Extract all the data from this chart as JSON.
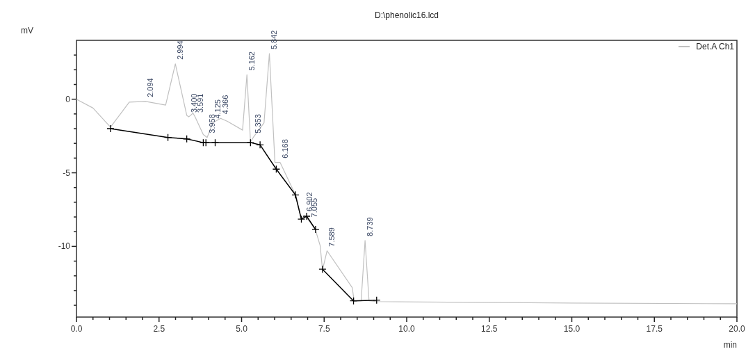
{
  "chart_data": {
    "type": "line",
    "title": "D:\\phenolic16.lcd",
    "xlabel": "min",
    "ylabel": "mV",
    "xlim": [
      0,
      20
    ],
    "ylim": [
      -14.8,
      4.0
    ],
    "xticks": [
      {
        "value": 0,
        "label": "0.0"
      },
      {
        "value": 0.5,
        "label": null
      },
      {
        "value": 1,
        "label": null
      },
      {
        "value": 1.5,
        "label": null
      },
      {
        "value": 2,
        "label": null
      },
      {
        "value": 2.5,
        "label": "2.5"
      },
      {
        "value": 3,
        "label": null
      },
      {
        "value": 3.5,
        "label": null
      },
      {
        "value": 4,
        "label": null
      },
      {
        "value": 4.5,
        "label": null
      },
      {
        "value": 5,
        "label": "5.0"
      },
      {
        "value": 5.5,
        "label": null
      },
      {
        "value": 6,
        "label": null
      },
      {
        "value": 6.5,
        "label": null
      },
      {
        "value": 7,
        "label": null
      },
      {
        "value": 7.5,
        "label": "7.5"
      },
      {
        "value": 8,
        "label": null
      },
      {
        "value": 8.5,
        "label": null
      },
      {
        "value": 9,
        "label": null
      },
      {
        "value": 9.5,
        "label": null
      },
      {
        "value": 10,
        "label": "10.0"
      },
      {
        "value": 10.5,
        "label": null
      },
      {
        "value": 11,
        "label": null
      },
      {
        "value": 11.5,
        "label": null
      },
      {
        "value": 12,
        "label": null
      },
      {
        "value": 12.5,
        "label": "12.5"
      },
      {
        "value": 13,
        "label": null
      },
      {
        "value": 13.5,
        "label": null
      },
      {
        "value": 14,
        "label": null
      },
      {
        "value": 14.5,
        "label": null
      },
      {
        "value": 15,
        "label": "15.0"
      },
      {
        "value": 15.5,
        "label": null
      },
      {
        "value": 16,
        "label": null
      },
      {
        "value": 16.5,
        "label": null
      },
      {
        "value": 17,
        "label": null
      },
      {
        "value": 17.5,
        "label": "17.5"
      },
      {
        "value": 18,
        "label": null
      },
      {
        "value": 18.5,
        "label": null
      },
      {
        "value": 19,
        "label": null
      },
      {
        "value": 19.5,
        "label": null
      },
      {
        "value": 20,
        "label": "20.0"
      }
    ],
    "yticks": [
      {
        "value": -14,
        "label": null
      },
      {
        "value": -13,
        "label": null
      },
      {
        "value": -12,
        "label": null
      },
      {
        "value": -11,
        "label": null
      },
      -10,
      {
        "value": -9,
        "label": null
      },
      {
        "value": -8,
        "label": null
      },
      {
        "value": -7,
        "label": null
      },
      {
        "value": -6,
        "label": null
      },
      -5,
      {
        "value": -4,
        "label": null
      },
      {
        "value": -3,
        "label": null
      },
      {
        "value": -2,
        "label": null
      },
      {
        "value": -1,
        "label": null
      },
      0,
      {
        "value": 1,
        "label": null
      },
      {
        "value": 2,
        "label": null
      },
      {
        "value": 3,
        "label": null
      }
    ],
    "grid": false,
    "legend": "top right",
    "series": [
      {
        "name": "Det.A Ch1",
        "color": "#c0c0c0",
        "marker": "none",
        "x": [
          0,
          0.5,
          1.03,
          1.6,
          2.094,
          2.7,
          2.994,
          3.34,
          3.4,
          3.53,
          3.591,
          3.84,
          3.958,
          4.125,
          4.366,
          4.57,
          5.03,
          5.162,
          5.27,
          5.353,
          5.68,
          5.842,
          6.01,
          6.168,
          6.63,
          6.81,
          6.902,
          7.055,
          7.24,
          7.38,
          7.45,
          7.589,
          8.35,
          8.41,
          8.62,
          8.739,
          8.86,
          9.09,
          12,
          15,
          20
        ],
        "values": [
          0,
          -0.6,
          -1.9,
          -0.2,
          -0.15,
          -0.4,
          2.4,
          -1.1,
          -1.2,
          -0.95,
          -1.2,
          -2.4,
          -2.6,
          -1.6,
          -1.3,
          -1.5,
          -2.1,
          1.66,
          -2.9,
          -2.6,
          -1.6,
          3.1,
          -4.3,
          -4.3,
          -6.5,
          -8.15,
          -7.9,
          -8.3,
          -8.9,
          -9.95,
          -11.6,
          -10.3,
          -12.8,
          -13.7,
          -13.7,
          -9.6,
          -13.7,
          -13.75,
          -13.8,
          -13.85,
          -13.9
        ]
      },
      {
        "color": "#000000",
        "marker": "cross",
        "x": [
          1.03,
          2.77,
          3.34,
          3.84,
          3.92,
          4.2,
          5.27,
          5.56,
          6.05,
          6.63,
          6.81,
          6.97,
          7.24,
          7.3,
          7.45,
          8.39,
          9.09
        ],
        "values": [
          -2.0,
          -2.6,
          -2.7,
          -2.95,
          -2.95,
          -2.95,
          -2.95,
          -3.1,
          -4.75,
          -6.5,
          -8.15,
          -7.95,
          -8.85,
          null,
          -11.55,
          -13.7,
          -13.65
        ]
      }
    ],
    "annotations": [
      {
        "text": "2.094",
        "x": 2.094,
        "y": -0.15
      },
      {
        "text": "2.994",
        "x": 2.994,
        "y": 2.4
      },
      {
        "text": "3.400",
        "x": 3.4,
        "y": -1.2
      },
      {
        "text": "3.591",
        "x": 3.591,
        "y": -1.2
      },
      {
        "text": "3.958",
        "x": 3.958,
        "y": -2.6
      },
      {
        "text": "4.125",
        "x": 4.125,
        "y": -1.6
      },
      {
        "text": "4.366",
        "x": 4.366,
        "y": -1.3
      },
      {
        "text": "5.162",
        "x": 5.162,
        "y": 1.66
      },
      {
        "text": "5.353",
        "x": 5.353,
        "y": -2.6
      },
      {
        "text": "5.842",
        "x": 5.842,
        "y": 3.1
      },
      {
        "text": "6.168",
        "x": 6.168,
        "y": -4.3
      },
      {
        "text": "6.902",
        "x": 6.902,
        "y": -7.9
      },
      {
        "text": "7.055",
        "x": 7.055,
        "y": -8.3
      },
      {
        "text": "7.589",
        "x": 7.589,
        "y": -10.3
      },
      {
        "text": "8.739",
        "x": 8.739,
        "y": -9.6
      }
    ]
  }
}
